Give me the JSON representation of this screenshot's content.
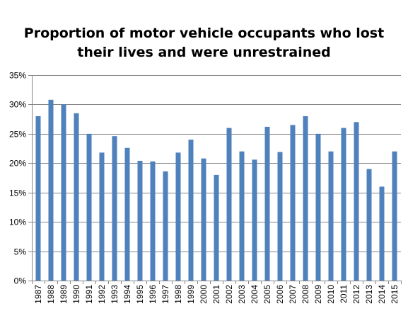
{
  "chart_data": {
    "type": "bar",
    "title_lines": [
      "Proportion of motor vehicle occupants who lost",
      "their lives and were unrestrained"
    ],
    "xlabel": "",
    "ylabel": "",
    "ylim": [
      0,
      35
    ],
    "y_ticks": [
      "0%",
      "5%",
      "10%",
      "15%",
      "20%",
      "25%",
      "30%",
      "35%"
    ],
    "y_tick_values": [
      0,
      5,
      10,
      15,
      20,
      25,
      30,
      35
    ],
    "grid": true,
    "legend": "none",
    "categories": [
      "1987",
      "1988",
      "1989",
      "1990",
      "1991",
      "1992",
      "1993",
      "1994",
      "1995",
      "1996",
      "1997",
      "1998",
      "1999",
      "2000",
      "2001",
      "2002",
      "2003",
      "2004",
      "2005",
      "2006",
      "2007",
      "2008",
      "2009",
      "2010",
      "2011",
      "2012",
      "2013",
      "2014",
      "2015"
    ],
    "values": [
      28.0,
      30.8,
      30.0,
      28.5,
      25.0,
      21.8,
      24.6,
      22.6,
      20.4,
      20.3,
      18.6,
      21.8,
      24.0,
      20.8,
      18.0,
      26.0,
      22.0,
      20.6,
      26.2,
      21.9,
      26.5,
      28.0,
      25.0,
      22.0,
      26.0,
      27.0,
      19.0,
      16.0,
      22.0
    ],
    "colors": {
      "bar": "#4f81bd",
      "grid": "#868686",
      "axis": "#868686"
    }
  }
}
